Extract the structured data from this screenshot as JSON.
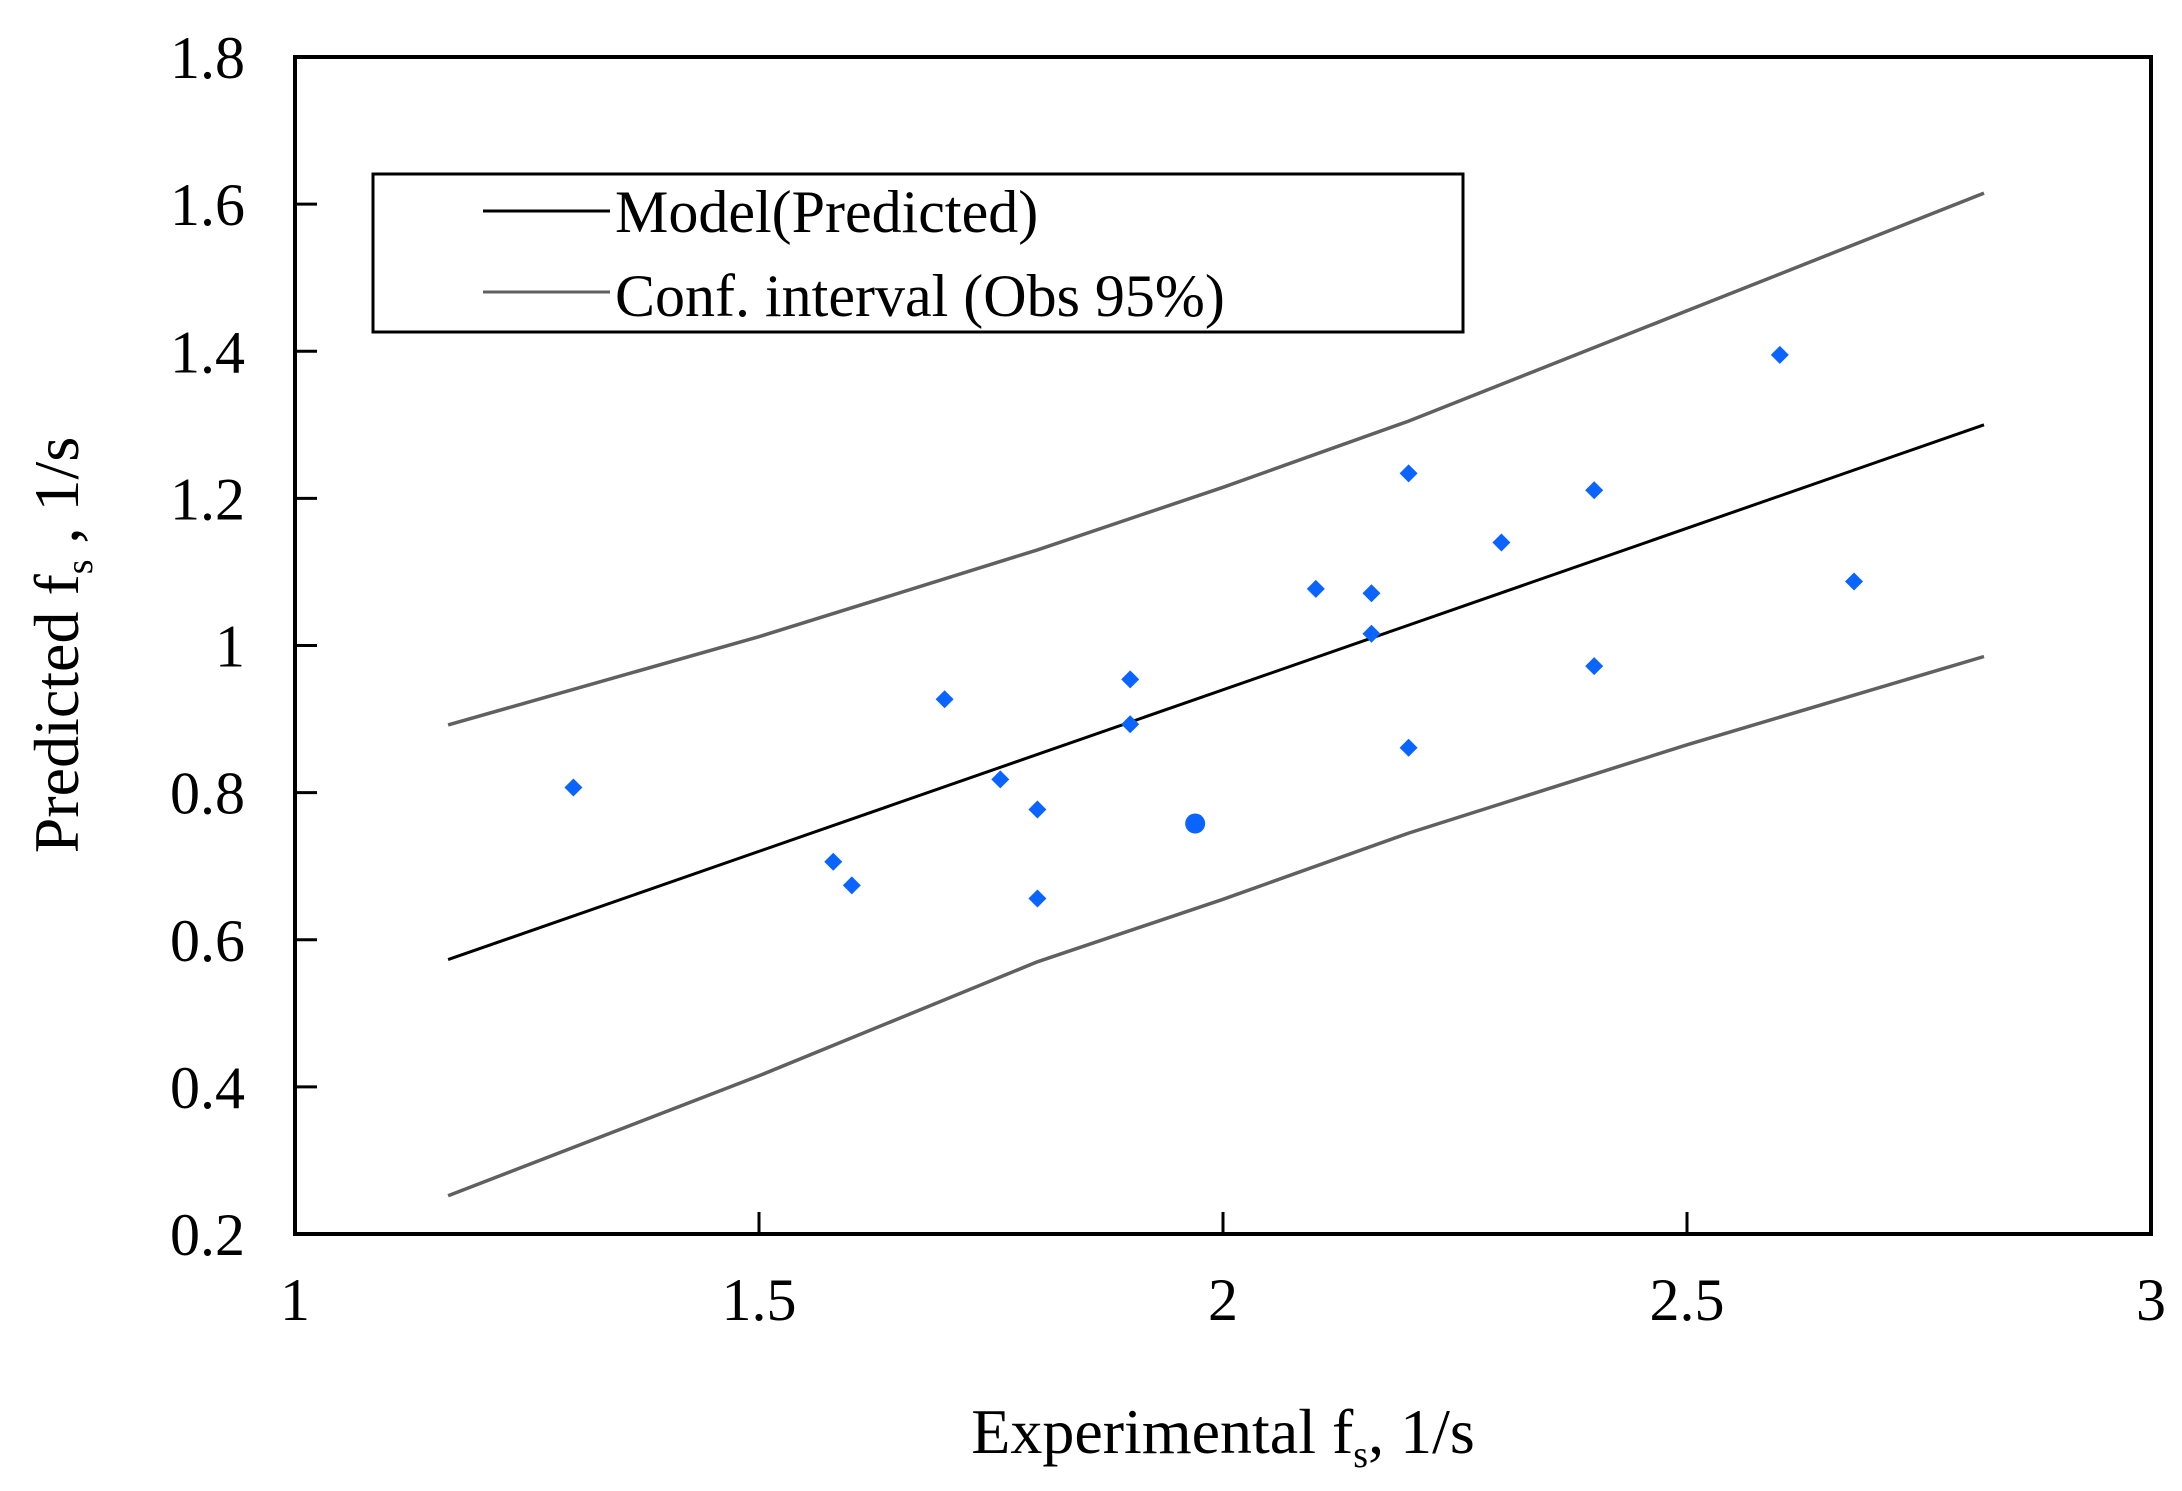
{
  "chart_data": {
    "type": "scatter",
    "title": "",
    "xlabel": {
      "main": "Experimental f",
      "sub": "s",
      "suffix": ", 1/s"
    },
    "ylabel": {
      "main": "Predicted f",
      "sub": "s",
      "suffix": " , 1/s"
    },
    "xlim": [
      1,
      3
    ],
    "ylim": [
      0.2,
      1.8
    ],
    "x_ticks": [
      1,
      1.5,
      2,
      2.5,
      3
    ],
    "x_tick_labels": [
      "1",
      "1.5",
      "2",
      "2.5",
      "3"
    ],
    "y_ticks": [
      0.2,
      0.4,
      0.6,
      0.8,
      1.0,
      1.2,
      1.4,
      1.6,
      1.8
    ],
    "y_tick_labels": [
      "0.2",
      "0.4",
      "0.6",
      "0.8",
      "1",
      "1.2",
      "1.4",
      "1.6",
      "1.8"
    ],
    "grid": false,
    "legend_position": "top-left",
    "legend": [
      {
        "label": "Model(Predicted)",
        "color": "#000000"
      },
      {
        "label": "Conf. interval (Obs 95%)",
        "color": "#606060"
      }
    ],
    "model_line": {
      "name": "Model(Predicted)",
      "x": [
        1.165,
        2.82
      ],
      "y": [
        0.573,
        1.3
      ]
    },
    "conf_upper": {
      "name": "Conf. interval (Obs 95%)",
      "x": [
        1.165,
        1.5,
        1.8,
        2.0,
        2.2,
        2.5,
        2.82
      ],
      "y": [
        0.892,
        1.012,
        1.13,
        1.215,
        1.305,
        1.455,
        1.615
      ]
    },
    "conf_lower": {
      "name": "Conf. interval (Obs 95%)",
      "x": [
        1.165,
        1.5,
        1.8,
        2.0,
        2.2,
        2.5,
        2.82
      ],
      "y": [
        0.252,
        0.415,
        0.57,
        0.655,
        0.745,
        0.865,
        0.985
      ]
    },
    "points": {
      "name": "Observations",
      "color": "#0a64ff",
      "x": [
        1.3,
        1.58,
        1.6,
        1.7,
        1.76,
        1.8,
        1.8,
        1.9,
        1.9,
        2.1,
        2.16,
        2.16,
        2.2,
        2.2,
        2.3,
        2.4,
        2.4,
        2.6,
        2.68
      ],
      "y": [
        0.807,
        0.706,
        0.674,
        0.927,
        0.818,
        0.777,
        0.656,
        0.954,
        0.893,
        1.077,
        1.071,
        1.016,
        1.234,
        0.861,
        1.14,
        1.211,
        0.972,
        1.395,
        1.087
      ]
    },
    "highlight_point": {
      "x": 1.97,
      "y": 0.758,
      "color": "#0a64ff"
    }
  }
}
